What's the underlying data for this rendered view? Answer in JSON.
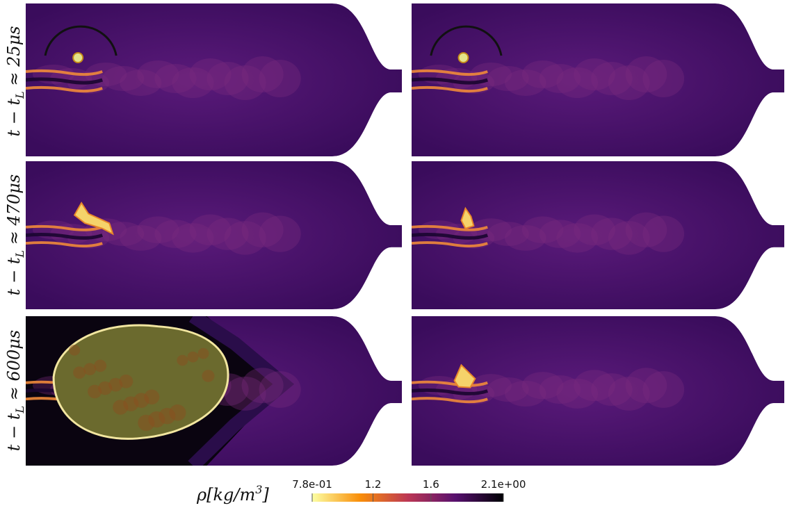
{
  "figure": {
    "rows": [
      {
        "prefix": "t − t",
        "sub": "L",
        "suffix": " ≈ 25μs"
      },
      {
        "prefix": "t − t",
        "sub": "L",
        "suffix": " ≈ 470μs"
      },
      {
        "prefix": "t − t",
        "sub": "L",
        "suffix": " ≈ 600μs"
      }
    ],
    "colorbar": {
      "label": {
        "main": "ρ[kg/m",
        "sup": "3",
        "end": "]"
      },
      "lim": [
        0.78,
        2.1
      ],
      "ticks": [
        {
          "value": 0.78,
          "label": "7.8e-01"
        },
        1.2,
        1.6,
        {
          "value": 2.1,
          "label": "2.1e+00"
        }
      ],
      "colors": [
        "#fcffa4",
        "#f98e09",
        "#bc3754",
        "#57106e",
        "#000004"
      ]
    }
  }
}
